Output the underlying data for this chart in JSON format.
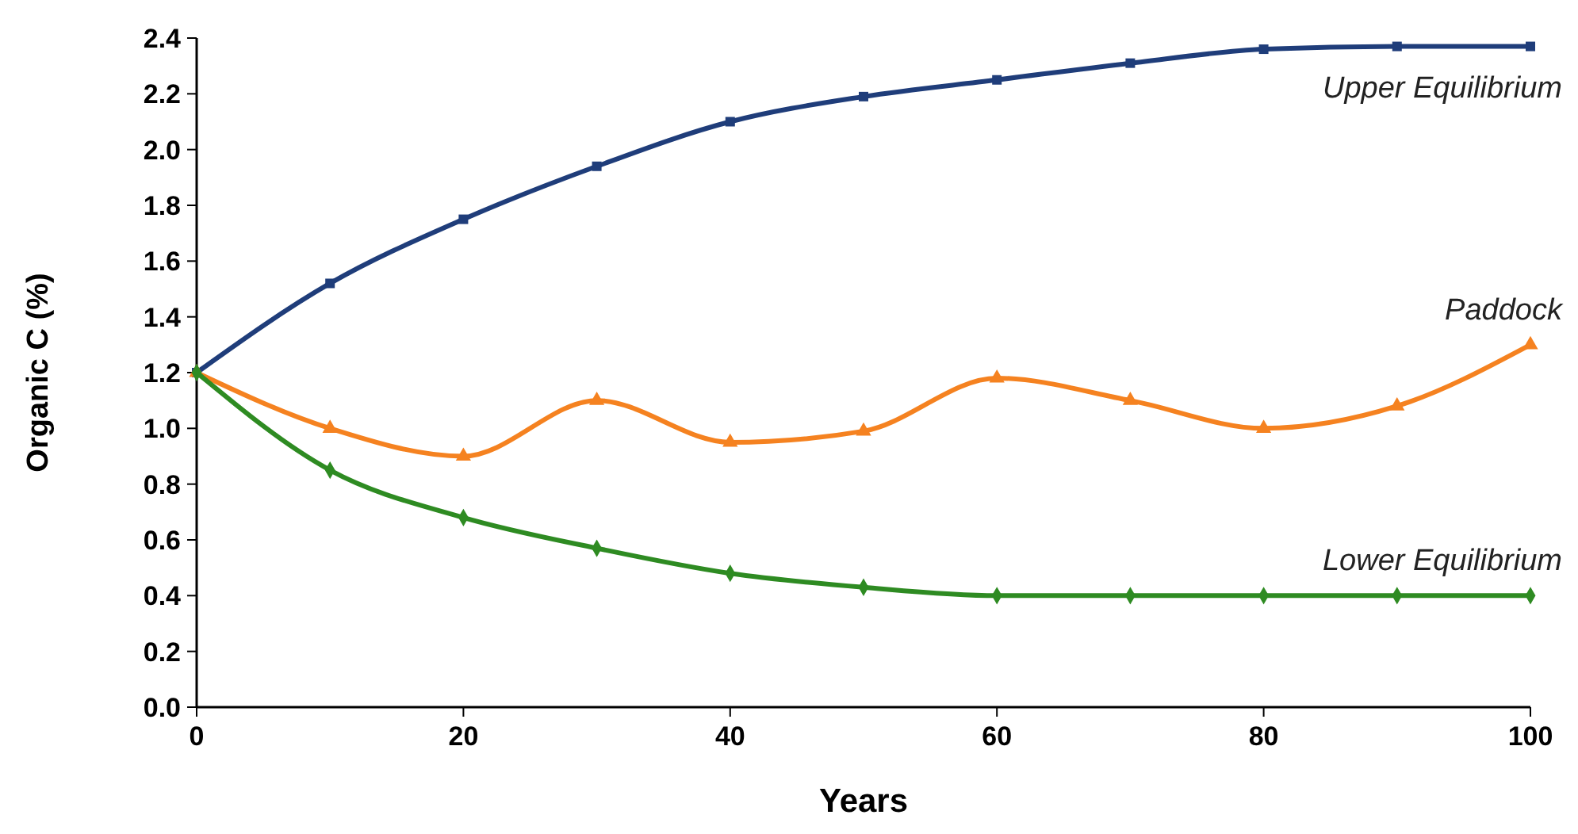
{
  "chart_data": {
    "type": "line",
    "xlabel": "Years",
    "ylabel": "Organic C (%)",
    "x": [
      0,
      10,
      20,
      30,
      40,
      50,
      60,
      70,
      80,
      90,
      100
    ],
    "xlim": [
      0,
      100
    ],
    "xticks": [
      0,
      20,
      40,
      60,
      80,
      100
    ],
    "ylim": [
      0,
      2.4
    ],
    "yticks": [
      {
        "value": 0,
        "label": "0.0"
      },
      {
        "value": 0.2,
        "label": "0.2"
      },
      {
        "value": 0.4,
        "label": "0.4"
      },
      {
        "value": 0.6,
        "label": "0.6"
      },
      {
        "value": 0.8,
        "label": "0.8"
      },
      {
        "value": 1,
        "label": "1.0"
      },
      {
        "value": 1.2,
        "label": "1.2"
      },
      {
        "value": 1.4,
        "label": "1.4"
      },
      {
        "value": 1.6,
        "label": "1.6"
      },
      {
        "value": 1.8,
        "label": "1.8"
      },
      {
        "value": 2,
        "label": "2.0"
      },
      {
        "value": 2.2,
        "label": "2.2"
      },
      {
        "value": 2.4,
        "label": "2.4"
      }
    ],
    "grid": false,
    "line_style": "solid",
    "series": [
      {
        "name": "Upper Equilibrium",
        "color": "#1f3d7a",
        "marker": "square",
        "values": [
          1.2,
          1.52,
          1.75,
          1.94,
          2.1,
          2.19,
          2.25,
          2.31,
          2.36,
          2.37,
          2.37
        ]
      },
      {
        "name": "Paddock",
        "color": "#f58220",
        "marker": "triangle",
        "values": [
          1.2,
          1.0,
          0.9,
          1.1,
          0.95,
          0.99,
          1.18,
          1.1,
          1.0,
          1.08,
          1.3
        ]
      },
      {
        "name": "Lower Equilibrium",
        "color": "#2e8b22",
        "marker": "diamond",
        "values": [
          1.2,
          0.85,
          0.68,
          0.57,
          0.48,
          0.43,
          0.4,
          0.4,
          0.4,
          0.4,
          0.4
        ]
      }
    ]
  }
}
